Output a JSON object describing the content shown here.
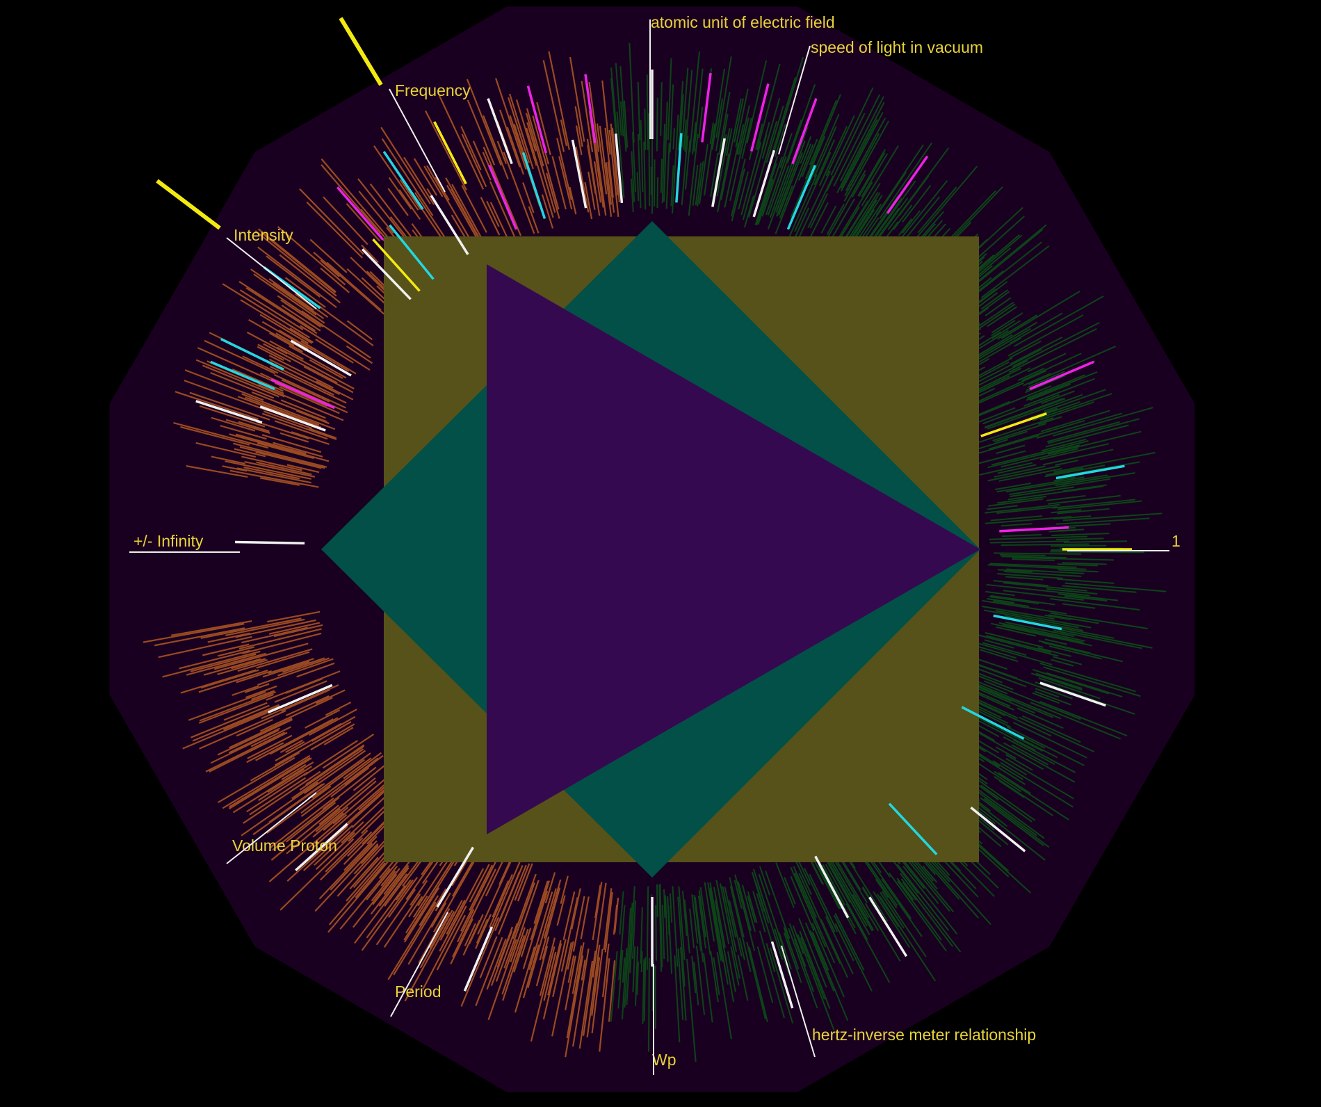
{
  "colors": {
    "background": "#000000",
    "dodecagon": "#1a0020",
    "square": "#57521a",
    "diamond": "#025047",
    "triangle": "#35094f",
    "green_ticks": "#0c4418",
    "orange_ticks": "#9a4a22",
    "white_ticks": "#f0f0f0",
    "cyan_ticks": "#22d8e0",
    "magenta_ticks": "#ee22e6",
    "yellow_ticks": "#f2ea10",
    "label_text": "#e8d23a"
  },
  "labels": [
    {
      "id": "infinity",
      "text": "+/- Infinity"
    },
    {
      "id": "one",
      "text": "1"
    },
    {
      "id": "frequency",
      "text": "Frequency"
    },
    {
      "id": "intensity",
      "text": "Intensity"
    },
    {
      "id": "atomic",
      "text": "atomic unit of electric field"
    },
    {
      "id": "speed",
      "text": "speed of light in vacuum"
    },
    {
      "id": "volume",
      "text": "Volume Proton"
    },
    {
      "id": "period",
      "text": "Period"
    },
    {
      "id": "wp",
      "text": "Wp"
    },
    {
      "id": "hertz",
      "text": "hertz-inverse meter relationship"
    }
  ],
  "highlight_ticks": [
    {
      "angle": 181,
      "color": "white"
    },
    {
      "angle": 0,
      "color": "yellow"
    },
    {
      "angle": 357,
      "color": "magenta"
    },
    {
      "angle": 350,
      "color": "cyan"
    },
    {
      "angle": 341,
      "color": "yellow"
    },
    {
      "angle": 337,
      "color": "magenta"
    },
    {
      "angle": 11,
      "color": "cyan"
    },
    {
      "angle": 19,
      "color": "white"
    },
    {
      "angle": 27,
      "color": "cyan"
    },
    {
      "angle": 39,
      "color": "white"
    },
    {
      "angle": 47,
      "color": "cyan"
    },
    {
      "angle": 58,
      "color": "white"
    },
    {
      "angle": 62,
      "color": "white"
    },
    {
      "angle": 73,
      "color": "white"
    },
    {
      "angle": 90,
      "color": "white"
    },
    {
      "angle": 113,
      "color": "white"
    },
    {
      "angle": 121,
      "color": "white"
    },
    {
      "angle": 138,
      "color": "white"
    },
    {
      "angle": 157,
      "color": "white"
    },
    {
      "angle": 198,
      "color": "white"
    },
    {
      "angle": 200,
      "color": "white"
    },
    {
      "angle": 203,
      "color": "cyan"
    },
    {
      "angle": 204,
      "color": "magenta"
    },
    {
      "angle": 206,
      "color": "cyan"
    },
    {
      "angle": 210,
      "color": "white"
    },
    {
      "angle": 216,
      "color": "cyan"
    },
    {
      "angle": 226,
      "color": "white"
    },
    {
      "angle": 229,
      "color": "magenta"
    },
    {
      "angle": 231,
      "color": "cyan"
    },
    {
      "angle": 236,
      "color": "cyan"
    },
    {
      "angle": 238,
      "color": "white"
    },
    {
      "angle": 243,
      "color": "white"
    },
    {
      "angle": 247,
      "color": "magenta"
    },
    {
      "angle": 250,
      "color": "white"
    },
    {
      "angle": 252,
      "color": "cyan"
    },
    {
      "angle": 255,
      "color": "magenta"
    },
    {
      "angle": 259,
      "color": "white"
    },
    {
      "angle": 262,
      "color": "magenta"
    },
    {
      "angle": 265,
      "color": "white"
    },
    {
      "angle": 270,
      "color": "white"
    },
    {
      "angle": 274,
      "color": "cyan"
    },
    {
      "angle": 277,
      "color": "magenta"
    },
    {
      "angle": 280,
      "color": "white"
    },
    {
      "angle": 284,
      "color": "magenta"
    },
    {
      "angle": 287,
      "color": "white"
    },
    {
      "angle": 290,
      "color": "magenta"
    },
    {
      "angle": 293,
      "color": "cyan"
    },
    {
      "angle": 305,
      "color": "magenta"
    },
    {
      "angle": 228,
      "color": "yellow"
    },
    {
      "angle": 243,
      "color": "yellow"
    }
  ]
}
